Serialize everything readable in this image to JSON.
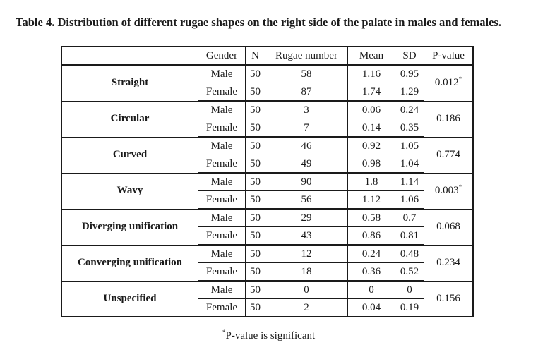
{
  "caption": "Table 4. Distribution of different rugae shapes on the right side of the palate in males and females.",
  "headers": {
    "shape": "",
    "gender": "Gender",
    "n": "N",
    "rugae_number": "Rugae number",
    "mean": "Mean",
    "sd": "SD",
    "p_value": "P-value"
  },
  "significance_mark": "*",
  "rows": [
    {
      "shape": "Straight",
      "p_value": "0.012",
      "significant": true,
      "male": {
        "gender": "Male",
        "n": "50",
        "rugae": "58",
        "mean": "1.16",
        "sd": "0.95"
      },
      "female": {
        "gender": "Female",
        "n": "50",
        "rugae": "87",
        "mean": "1.74",
        "sd": "1.29"
      }
    },
    {
      "shape": "Circular",
      "p_value": "0.186",
      "significant": false,
      "male": {
        "gender": "Male",
        "n": "50",
        "rugae": "3",
        "mean": "0.06",
        "sd": "0.24"
      },
      "female": {
        "gender": "Female",
        "n": "50",
        "rugae": "7",
        "mean": "0.14",
        "sd": "0.35"
      }
    },
    {
      "shape": "Curved",
      "p_value": "0.774",
      "significant": false,
      "male": {
        "gender": "Male",
        "n": "50",
        "rugae": "46",
        "mean": "0.92",
        "sd": "1.05"
      },
      "female": {
        "gender": "Female",
        "n": "50",
        "rugae": "49",
        "mean": "0.98",
        "sd": "1.04"
      }
    },
    {
      "shape": "Wavy",
      "p_value": "0.003",
      "significant": true,
      "male": {
        "gender": "Male",
        "n": "50",
        "rugae": "90",
        "mean": "1.8",
        "sd": "1.14"
      },
      "female": {
        "gender": "Female",
        "n": "50",
        "rugae": "56",
        "mean": "1.12",
        "sd": "1.06"
      }
    },
    {
      "shape": "Diverging unification",
      "p_value": "0.068",
      "significant": false,
      "male": {
        "gender": "Male",
        "n": "50",
        "rugae": "29",
        "mean": "0.58",
        "sd": "0.7"
      },
      "female": {
        "gender": "Female",
        "n": "50",
        "rugae": "43",
        "mean": "0.86",
        "sd": "0.81"
      }
    },
    {
      "shape": "Converging unification",
      "p_value": "0.234",
      "significant": false,
      "male": {
        "gender": "Male",
        "n": "50",
        "rugae": "12",
        "mean": "0.24",
        "sd": "0.48"
      },
      "female": {
        "gender": "Female",
        "n": "50",
        "rugae": "18",
        "mean": "0.36",
        "sd": "0.52"
      }
    },
    {
      "shape": "Unspecified",
      "p_value": "0.156",
      "significant": false,
      "male": {
        "gender": "Male",
        "n": "50",
        "rugae": "0",
        "mean": "0",
        "sd": "0"
      },
      "female": {
        "gender": "Female",
        "n": "50",
        "rugae": "2",
        "mean": "0.04",
        "sd": "0.19"
      }
    }
  ],
  "footnote": {
    "mark": "*",
    "text": "P-value is significant"
  }
}
